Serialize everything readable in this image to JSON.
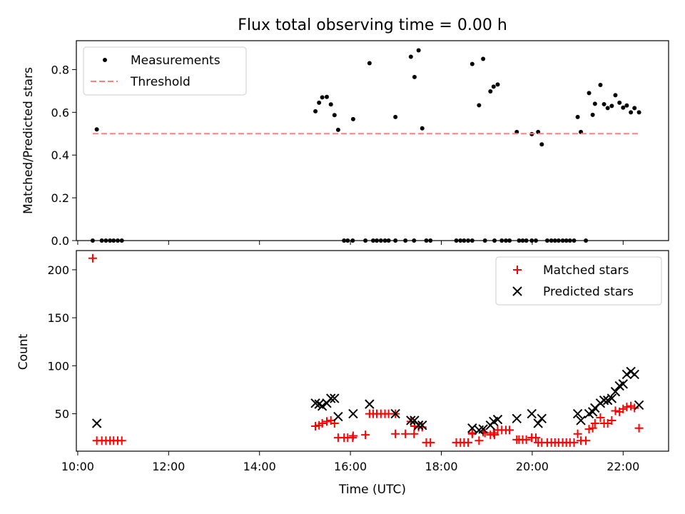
{
  "chart_data": [
    {
      "type": "scatter",
      "title": "Flux total observing time = 0.00 h",
      "xlabel": "",
      "ylabel": "Matched/Predicted stars",
      "x_unit": "hours UTC",
      "xlim": [
        9.97,
        23.0
      ],
      "ylim": [
        0,
        0.935
      ],
      "yticks": [
        0.0,
        0.2,
        0.4,
        0.6,
        0.8
      ],
      "ytick_labels": [
        "0.0",
        "0.2",
        "0.4",
        "0.6",
        "0.8"
      ],
      "xticks": [
        10,
        12,
        14,
        16,
        18,
        20,
        22
      ],
      "legend": {
        "position": "upper-left",
        "entries": [
          "Measurements",
          "Threshold"
        ]
      },
      "series": [
        {
          "name": "Measurements",
          "style": "dot",
          "color": "#000000",
          "points": [
            [
              10.33,
              0.0
            ],
            [
              10.42,
              0.52
            ],
            [
              10.53,
              0.0
            ],
            [
              10.62,
              0.0
            ],
            [
              10.71,
              0.0
            ],
            [
              10.79,
              0.0
            ],
            [
              10.88,
              0.0
            ],
            [
              10.97,
              0.0
            ],
            [
              15.23,
              0.605
            ],
            [
              15.31,
              0.645
            ],
            [
              15.38,
              0.67
            ],
            [
              15.48,
              0.672
            ],
            [
              15.57,
              0.637
            ],
            [
              15.65,
              0.587
            ],
            [
              15.73,
              0.518
            ],
            [
              15.86,
              0.0
            ],
            [
              15.94,
              0.0
            ],
            [
              16.06,
              0.568
            ],
            [
              16.05,
              0.0
            ],
            [
              16.33,
              0.0
            ],
            [
              16.42,
              0.83
            ],
            [
              16.5,
              0.0
            ],
            [
              16.58,
              0.0
            ],
            [
              16.67,
              0.0
            ],
            [
              16.76,
              0.0
            ],
            [
              16.84,
              0.0
            ],
            [
              16.99,
              0.578
            ],
            [
              16.99,
              0.0
            ],
            [
              17.21,
              0.0
            ],
            [
              17.33,
              0.86
            ],
            [
              17.41,
              0.765
            ],
            [
              17.5,
              0.89
            ],
            [
              17.4,
              0.0
            ],
            [
              17.58,
              0.525
            ],
            [
              17.67,
              0.0
            ],
            [
              17.76,
              0.0
            ],
            [
              18.33,
              0.0
            ],
            [
              18.42,
              0.0
            ],
            [
              18.5,
              0.0
            ],
            [
              18.59,
              0.0
            ],
            [
              18.68,
              0.826
            ],
            [
              18.68,
              0.0
            ],
            [
              18.83,
              0.633
            ],
            [
              18.92,
              0.85
            ],
            [
              18.96,
              0.0
            ],
            [
              19.08,
              0.698
            ],
            [
              19.15,
              0.72
            ],
            [
              19.24,
              0.73
            ],
            [
              19.17,
              0.0
            ],
            [
              19.33,
              0.0
            ],
            [
              19.42,
              0.0
            ],
            [
              19.5,
              0.0
            ],
            [
              19.66,
              0.508
            ],
            [
              19.71,
              0.0
            ],
            [
              19.79,
              0.0
            ],
            [
              19.87,
              0.0
            ],
            [
              19.99,
              0.498
            ],
            [
              19.99,
              0.0
            ],
            [
              20.13,
              0.508
            ],
            [
              20.21,
              0.45
            ],
            [
              20.08,
              0.0
            ],
            [
              20.33,
              0.0
            ],
            [
              20.42,
              0.0
            ],
            [
              20.5,
              0.0
            ],
            [
              20.58,
              0.0
            ],
            [
              20.67,
              0.0
            ],
            [
              20.75,
              0.0
            ],
            [
              20.83,
              0.0
            ],
            [
              20.92,
              0.0
            ],
            [
              21.0,
              0.578
            ],
            [
              21.07,
              0.508
            ],
            [
              21.18,
              0.0
            ],
            [
              21.25,
              0.69
            ],
            [
              21.33,
              0.588
            ],
            [
              21.38,
              0.64
            ],
            [
              21.5,
              0.728
            ],
            [
              21.58,
              0.638
            ],
            [
              21.66,
              0.62
            ],
            [
              21.75,
              0.63
            ],
            [
              21.83,
              0.68
            ],
            [
              21.92,
              0.645
            ],
            [
              22.0,
              0.622
            ],
            [
              22.08,
              0.632
            ],
            [
              22.17,
              0.6
            ],
            [
              22.25,
              0.62
            ],
            [
              22.35,
              0.6
            ]
          ]
        },
        {
          "name": "Threshold",
          "style": "dashed-line",
          "color": "#ff8080",
          "x": [
            10.33,
            22.35
          ],
          "y": [
            0.5,
            0.5
          ]
        }
      ]
    },
    {
      "type": "scatter",
      "title": "",
      "xlabel": "Time (UTC)",
      "ylabel": "Count",
      "x_unit": "hours UTC",
      "xlim": [
        9.97,
        23.0
      ],
      "ylim": [
        11,
        220
      ],
      "yticks": [
        50,
        100,
        150,
        200
      ],
      "ytick_labels": [
        "50",
        "100",
        "150",
        "200"
      ],
      "xticks": [
        10,
        12,
        14,
        16,
        18,
        20,
        22
      ],
      "xtick_labels": [
        "10:00",
        "12:00",
        "14:00",
        "16:00",
        "18:00",
        "20:00",
        "22:00"
      ],
      "legend": {
        "position": "upper-right",
        "entries": [
          "Matched stars",
          "Predicted stars"
        ]
      },
      "series": [
        {
          "name": "Matched stars",
          "style": "plus",
          "color": "#ff0000",
          "points": [
            [
              10.33,
              212
            ],
            [
              10.42,
              22
            ],
            [
              10.53,
              22
            ],
            [
              10.62,
              22
            ],
            [
              10.71,
              22
            ],
            [
              10.79,
              22
            ],
            [
              10.88,
              22
            ],
            [
              10.97,
              22
            ],
            [
              15.23,
              37
            ],
            [
              15.31,
              38
            ],
            [
              15.38,
              40
            ],
            [
              15.48,
              42
            ],
            [
              15.57,
              43
            ],
            [
              15.65,
              40
            ],
            [
              15.73,
              25
            ],
            [
              15.86,
              25
            ],
            [
              15.94,
              25
            ],
            [
              16.06,
              27
            ],
            [
              16.05,
              25
            ],
            [
              16.33,
              28
            ],
            [
              16.42,
              50
            ],
            [
              16.5,
              50
            ],
            [
              16.58,
              50
            ],
            [
              16.67,
              50
            ],
            [
              16.76,
              50
            ],
            [
              16.84,
              50
            ],
            [
              16.99,
              29
            ],
            [
              16.99,
              50
            ],
            [
              17.21,
              29
            ],
            [
              17.33,
              42
            ],
            [
              17.41,
              37
            ],
            [
              17.5,
              36
            ],
            [
              17.4,
              29
            ],
            [
              17.58,
              36
            ],
            [
              17.67,
              20
            ],
            [
              17.76,
              20
            ],
            [
              18.33,
              20
            ],
            [
              18.42,
              20
            ],
            [
              18.5,
              20
            ],
            [
              18.59,
              20
            ],
            [
              18.68,
              29
            ],
            [
              18.68,
              30
            ],
            [
              18.83,
              22
            ],
            [
              18.92,
              31
            ],
            [
              18.96,
              30
            ],
            [
              19.08,
              28
            ],
            [
              19.15,
              30
            ],
            [
              19.24,
              33
            ],
            [
              19.17,
              28
            ],
            [
              19.33,
              33
            ],
            [
              19.42,
              33
            ],
            [
              19.5,
              33
            ],
            [
              19.66,
              23
            ],
            [
              19.71,
              23
            ],
            [
              19.79,
              23
            ],
            [
              19.87,
              23
            ],
            [
              19.99,
              25
            ],
            [
              19.99,
              25
            ],
            [
              20.13,
              20
            ],
            [
              20.21,
              20
            ],
            [
              20.08,
              25
            ],
            [
              20.33,
              20
            ],
            [
              20.42,
              20
            ],
            [
              20.5,
              20
            ],
            [
              20.58,
              20
            ],
            [
              20.67,
              20
            ],
            [
              20.75,
              20
            ],
            [
              20.83,
              20
            ],
            [
              20.92,
              20
            ],
            [
              21.0,
              29
            ],
            [
              21.07,
              22
            ],
            [
              21.18,
              22
            ],
            [
              21.25,
              34
            ],
            [
              21.33,
              35
            ],
            [
              21.38,
              40
            ],
            [
              21.5,
              46
            ],
            [
              21.58,
              40
            ],
            [
              21.66,
              40
            ],
            [
              21.75,
              43
            ],
            [
              21.83,
              53
            ],
            [
              21.92,
              52
            ],
            [
              22.0,
              55
            ],
            [
              22.08,
              57
            ],
            [
              22.17,
              58
            ],
            [
              22.25,
              56
            ],
            [
              22.35,
              35
            ]
          ]
        },
        {
          "name": "Predicted stars",
          "style": "x",
          "color": "#000000",
          "points": [
            [
              10.42,
              40
            ],
            [
              15.23,
              61
            ],
            [
              15.31,
              60
            ],
            [
              15.38,
              58
            ],
            [
              15.48,
              61
            ],
            [
              15.57,
              66
            ],
            [
              15.65,
              66
            ],
            [
              15.73,
              47
            ],
            [
              16.06,
              50
            ],
            [
              16.42,
              60
            ],
            [
              16.99,
              50
            ],
            [
              17.33,
              43
            ],
            [
              17.41,
              43
            ],
            [
              17.5,
              38
            ],
            [
              17.58,
              38
            ],
            [
              18.68,
              35
            ],
            [
              18.83,
              33
            ],
            [
              18.92,
              34
            ],
            [
              19.08,
              38
            ],
            [
              19.15,
              42
            ],
            [
              19.24,
              44
            ],
            [
              19.66,
              45
            ],
            [
              19.99,
              50
            ],
            [
              20.13,
              40
            ],
            [
              20.21,
              45
            ],
            [
              21.0,
              50
            ],
            [
              21.07,
              43
            ],
            [
              21.25,
              50
            ],
            [
              21.33,
              52
            ],
            [
              21.38,
              56
            ],
            [
              21.5,
              61
            ],
            [
              21.58,
              64
            ],
            [
              21.66,
              64
            ],
            [
              21.75,
              66
            ],
            [
              21.83,
              73
            ],
            [
              21.92,
              79
            ],
            [
              22.0,
              81
            ],
            [
              22.08,
              91
            ],
            [
              22.17,
              94
            ],
            [
              22.25,
              91
            ],
            [
              22.35,
              59
            ]
          ]
        }
      ]
    }
  ]
}
